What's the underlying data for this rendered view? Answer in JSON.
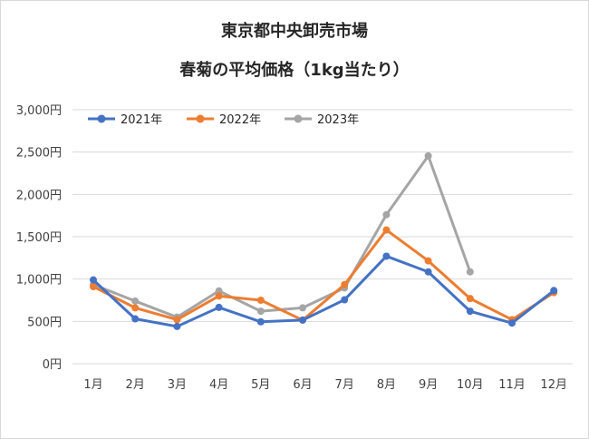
{
  "chart_data": {
    "type": "line",
    "title": "東京都中央卸売市場",
    "subtitle": "春菊の平均価格（1kg当たり）",
    "categories": [
      "1月",
      "2月",
      "3月",
      "4月",
      "5月",
      "6月",
      "7月",
      "8月",
      "9月",
      "10月",
      "11月",
      "12月"
    ],
    "ylim": [
      0,
      3000
    ],
    "yticks": [
      0,
      500,
      1000,
      1500,
      2000,
      2500,
      3000
    ],
    "ytick_labels": [
      "0円",
      "500円",
      "1,000円",
      "1,500円",
      "2,000円",
      "2,500円",
      "3,000円"
    ],
    "grid": true,
    "legend_position": "top-left",
    "series": [
      {
        "name": "2021年",
        "color": "#4472C4",
        "values": [
          990,
          530,
          440,
          665,
          495,
          515,
          755,
          1270,
          1085,
          620,
          480,
          865
        ]
      },
      {
        "name": "2022年",
        "color": "#ED7D31",
        "values": [
          910,
          660,
          520,
          800,
          750,
          515,
          935,
          1580,
          1215,
          770,
          520,
          840
        ]
      },
      {
        "name": "2023年",
        "color": "#A5A5A5",
        "values": [
          935,
          740,
          550,
          860,
          620,
          660,
          895,
          1760,
          2455,
          1085,
          null,
          null
        ]
      }
    ]
  }
}
